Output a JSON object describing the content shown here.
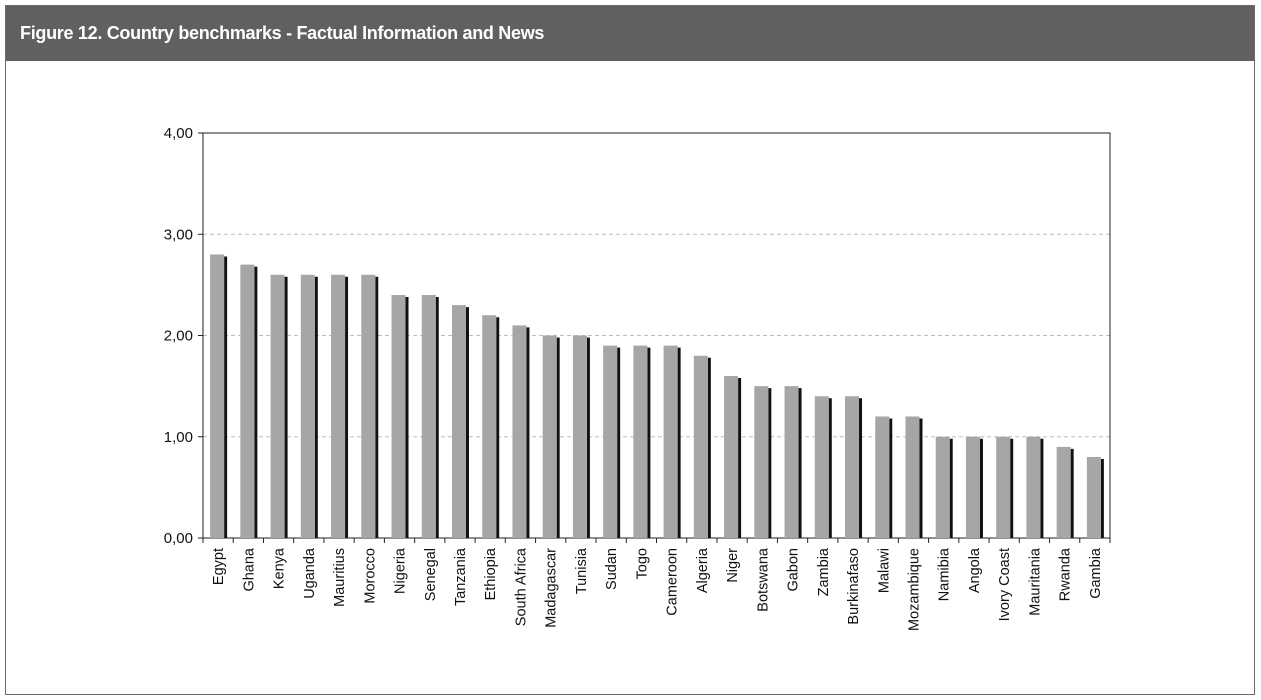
{
  "header": {
    "title": "Figure 12. Country benchmarks - Factual Information and News"
  },
  "colors": {
    "header_bg": "#606060",
    "bar_face": "#a6a6a6",
    "bar_shadow": "#111111",
    "grid": "#bdbdbd"
  },
  "chart_data": {
    "type": "bar",
    "title": "",
    "xlabel": "",
    "ylabel": "",
    "ylim": [
      0,
      4
    ],
    "yticks": [
      0,
      1,
      2,
      3,
      4
    ],
    "ytick_labels": [
      "0,00",
      "1,00",
      "2,00",
      "3,00",
      "4,00"
    ],
    "grid": "horizontal dashed",
    "legend": "none",
    "categories": [
      "Egypt",
      "Ghana",
      "Kenya",
      "Uganda",
      "Mauritius",
      "Morocco",
      "Nigeria",
      "Senegal",
      "Tanzania",
      "Ethiopia",
      "South Africa",
      "Madagascar",
      "Tunisia",
      "Sudan",
      "Togo",
      "Cameroon",
      "Algeria",
      "Niger",
      "Botswana",
      "Gabon",
      "Zambia",
      "Burkinafaso",
      "Malawi",
      "Mozambique",
      "Namibia",
      "Angola",
      "Ivory Coast",
      "Mauritania",
      "Rwanda",
      "Gambia"
    ],
    "values": [
      2.8,
      2.7,
      2.6,
      2.6,
      2.6,
      2.6,
      2.4,
      2.4,
      2.3,
      2.2,
      2.1,
      2.0,
      2.0,
      1.9,
      1.9,
      1.9,
      1.8,
      1.6,
      1.5,
      1.5,
      1.4,
      1.4,
      1.2,
      1.2,
      1.0,
      1.0,
      1.0,
      1.0,
      0.9,
      0.8
    ]
  }
}
